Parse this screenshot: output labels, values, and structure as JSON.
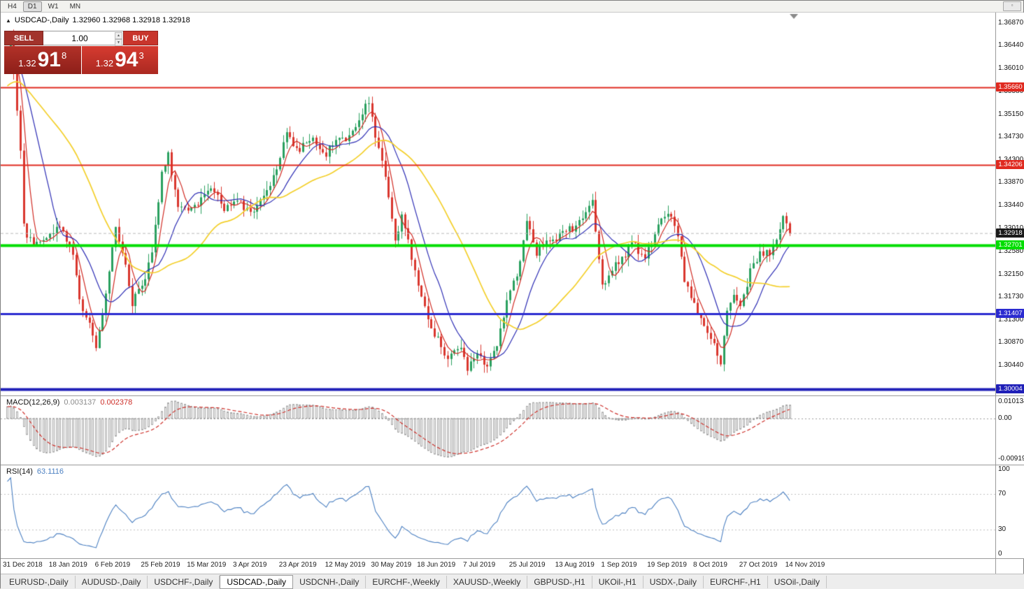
{
  "toolbar": {
    "timeframes": [
      "H4",
      "D1",
      "W1",
      "MN"
    ],
    "active_timeframe": "D1"
  },
  "icons": {
    "panel_collapse": "▲",
    "window_button": "▫",
    "spinner_up": "▲",
    "spinner_down": "▼"
  },
  "chart_header": {
    "symbol": "USDCAD-,Daily",
    "ohlc": "1.32960 1.32968 1.32918 1.32918"
  },
  "trade_panel": {
    "sell_label": "SELL",
    "buy_label": "BUY",
    "volume": "1.00",
    "bid": {
      "prefix": "1.32",
      "big": "91",
      "sup": "8"
    },
    "ask": {
      "prefix": "1.32",
      "big": "94",
      "sup": "3"
    }
  },
  "tabs": {
    "items": [
      "EURUSD-,Daily",
      "AUDUSD-,Daily",
      "USDCHF-,Daily",
      "USDCAD-,Daily",
      "USDCNH-,Daily",
      "EURCHF-,Weekly",
      "XAUUSD-,Weekly",
      "GBPUSD-,H1",
      "UKOil-,H1",
      "USDX-,Daily",
      "EURCHF-,H1",
      "USOil-,Daily"
    ],
    "active": "USDCAD-,Daily"
  },
  "chart_data": {
    "type": "candlestick",
    "symbol": "USDCAD",
    "timeframe": "Daily",
    "title": "USDCAD-,Daily",
    "price_axis": {
      "range": {
        "max": 1.3706,
        "min": 1.2988
      },
      "ticks": [
        "1.36870",
        "1.36440",
        "1.36010",
        "1.35580",
        "1.35150",
        "1.34730",
        "1.34300",
        "1.33870",
        "1.33440",
        "1.33010",
        "1.32580",
        "1.32150",
        "1.31730",
        "1.31300",
        "1.30870",
        "1.30440"
      ]
    },
    "current_price": {
      "value": 1.32918,
      "label": "1.32918",
      "box_color": "#1a1a1a"
    },
    "levels": [
      {
        "price": 1.3566,
        "label": "1.35660",
        "color": "#e02a20",
        "thickness": 2
      },
      {
        "price": 1.34206,
        "label": "1.34206",
        "color": "#e02a20",
        "thickness": 2
      },
      {
        "price": 1.32701,
        "label": "1.32701",
        "color": "#00dd00",
        "thickness": 4
      },
      {
        "price": 1.31407,
        "label": "1.31407",
        "color": "#2b2bd0",
        "thickness": 3
      },
      {
        "price": 1.30004,
        "label": "1.30004",
        "color": "#1f1fb8",
        "thickness": 4
      }
    ],
    "dates": [
      "31 Dec 2018",
      "18 Jan 2019",
      "6 Feb 2019",
      "25 Feb 2019",
      "15 Mar 2019",
      "3 Apr 2019",
      "23 Apr 2019",
      "12 May 2019",
      "30 May 2019",
      "18 Jun 2019",
      "7 Jul 2019",
      "25 Jul 2019",
      "13 Aug 2019",
      "1 Sep 2019",
      "19 Sep 2019",
      "8 Oct 2019",
      "27 Oct 2019",
      "14 Nov 2019"
    ],
    "bars": 239,
    "bars_per_label": 14,
    "anchors": [
      [
        0,
        1.3637
      ],
      [
        1,
        1.366
      ],
      [
        2,
        1.3598
      ],
      [
        4,
        1.3452
      ],
      [
        5,
        1.331
      ],
      [
        8,
        1.3268
      ],
      [
        12,
        1.329
      ],
      [
        16,
        1.3302
      ],
      [
        20,
        1.3252
      ],
      [
        23,
        1.3142
      ],
      [
        27,
        1.3086
      ],
      [
        30,
        1.318
      ],
      [
        33,
        1.3305
      ],
      [
        36,
        1.324
      ],
      [
        38,
        1.3162
      ],
      [
        41,
        1.3185
      ],
      [
        44,
        1.3268
      ],
      [
        47,
        1.3395
      ],
      [
        49,
        1.3442
      ],
      [
        52,
        1.335
      ],
      [
        55,
        1.3322
      ],
      [
        58,
        1.3356
      ],
      [
        62,
        1.3378
      ],
      [
        66,
        1.3342
      ],
      [
        70,
        1.3356
      ],
      [
        74,
        1.3332
      ],
      [
        78,
        1.3358
      ],
      [
        82,
        1.3422
      ],
      [
        85,
        1.3482
      ],
      [
        88,
        1.3448
      ],
      [
        92,
        1.3468
      ],
      [
        96,
        1.3442
      ],
      [
        100,
        1.3462
      ],
      [
        104,
        1.3478
      ],
      [
        107,
        1.3498
      ],
      [
        110,
        1.354
      ],
      [
        112,
        1.3482
      ],
      [
        115,
        1.3398
      ],
      [
        118,
        1.3278
      ],
      [
        120,
        1.3332
      ],
      [
        123,
        1.3242
      ],
      [
        126,
        1.3182
      ],
      [
        130,
        1.3098
      ],
      [
        134,
        1.3062
      ],
      [
        137,
        1.3078
      ],
      [
        140,
        1.3042
      ],
      [
        143,
        1.3068
      ],
      [
        146,
        1.3032
      ],
      [
        149,
        1.3092
      ],
      [
        152,
        1.3162
      ],
      [
        155,
        1.3212
      ],
      [
        158,
        1.3312
      ],
      [
        161,
        1.3252
      ],
      [
        164,
        1.3288
      ],
      [
        167,
        1.3272
      ],
      [
        170,
        1.3298
      ],
      [
        173,
        1.3308
      ],
      [
        176,
        1.3325
      ],
      [
        178,
        1.3352
      ],
      [
        181,
        1.3192
      ],
      [
        184,
        1.3222
      ],
      [
        187,
        1.3252
      ],
      [
        190,
        1.3268
      ],
      [
        193,
        1.3248
      ],
      [
        196,
        1.3272
      ],
      [
        199,
        1.3312
      ],
      [
        201,
        1.3335
      ],
      [
        204,
        1.3292
      ],
      [
        206,
        1.3202
      ],
      [
        209,
        1.3162
      ],
      [
        212,
        1.3122
      ],
      [
        215,
        1.3078
      ],
      [
        217,
        1.3052
      ],
      [
        219,
        1.3142
      ],
      [
        221,
        1.3172
      ],
      [
        223,
        1.3148
      ],
      [
        226,
        1.3232
      ],
      [
        229,
        1.3248
      ],
      [
        232,
        1.3262
      ],
      [
        234,
        1.3282
      ],
      [
        236,
        1.3318
      ],
      [
        238,
        1.32918
      ]
    ],
    "colors": {
      "up": "#2aa05f",
      "down": "#d9362e",
      "macd_hist": "#a6a6a6",
      "macd_signal": "#cd2f29",
      "rsi_line": "#4a7fc1",
      "background": "#ffffff",
      "pane_border": "#9a9a9a"
    },
    "moving_averages": [
      {
        "period": 5,
        "color": "#d02a22"
      },
      {
        "period": 13,
        "color": "#2d2db4"
      },
      {
        "period": 34,
        "color": "#f3cf2a"
      }
    ],
    "macd": {
      "name": "MACD(12,26,9)",
      "main_value": "0.003137",
      "signal_value": "0.002378",
      "axis": {
        "max": "0.010134",
        "zero": "0.00",
        "min": "-0.009194"
      }
    },
    "rsi": {
      "name": "RSI(14)",
      "value": "63.1116",
      "axis": [
        "100",
        "70",
        "30",
        "0"
      ],
      "levels": [
        70,
        30
      ]
    }
  }
}
